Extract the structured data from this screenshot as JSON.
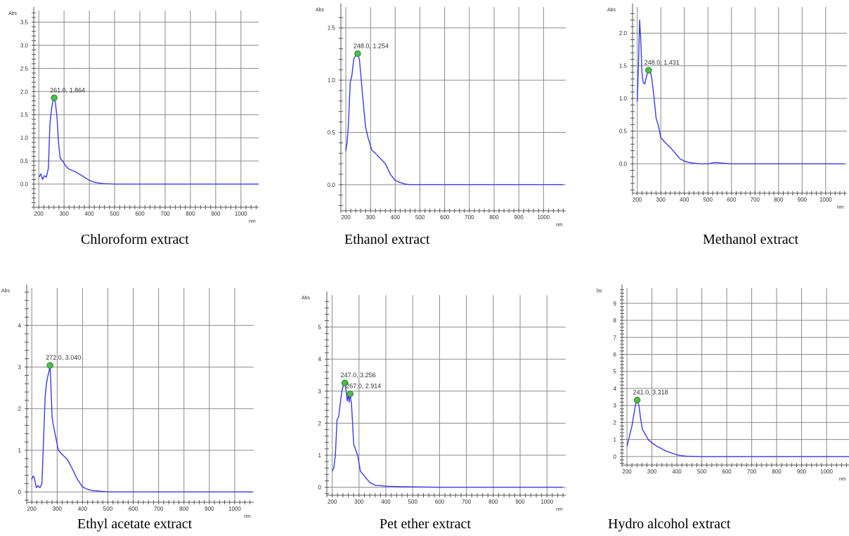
{
  "panels": [
    {
      "caption": "Chloroform extract",
      "chart_data": {
        "type": "line",
        "ylabel": "Abs",
        "xlabel": "nm",
        "xlim": [
          180,
          1070
        ],
        "ylim": [
          -0.5,
          3.75
        ],
        "x_ticks": [
          200,
          300,
          400,
          500,
          600,
          700,
          800,
          900,
          1000
        ],
        "y_ticks": [
          0.0,
          0.5,
          1.0,
          1.5,
          2.0,
          2.5,
          3.0,
          3.5
        ],
        "y_tick_labels": [
          "0.0",
          "0.5",
          "1.0",
          "1.5",
          "2.0",
          "2.5",
          "3.0",
          "3.5"
        ],
        "series": [
          {
            "x": [
              200,
              208,
              215,
              222,
              230,
              238,
              244,
              250,
              255,
              261,
              266,
              272,
              278,
              285,
              295,
              305,
              320,
              340,
              360,
              380,
              400,
              420,
              440,
              460,
              500,
              600,
              700,
              800,
              900,
              1000,
              1070
            ],
            "y": [
              0.15,
              0.22,
              0.1,
              0.18,
              0.15,
              0.35,
              1.3,
              1.6,
              1.78,
              1.864,
              1.75,
              1.45,
              0.9,
              0.55,
              0.5,
              0.4,
              0.32,
              0.28,
              0.22,
              0.15,
              0.08,
              0.04,
              0.02,
              0.01,
              0.0,
              0.0,
              0.0,
              0.0,
              0.0,
              0.0,
              0.0
            ]
          }
        ],
        "peaks": [
          {
            "x": 261,
            "y": 1.864,
            "label": "261.0, 1.864"
          }
        ]
      }
    },
    {
      "caption": "Ethanol extract",
      "chart_data": {
        "type": "line",
        "ylabel": "Abs",
        "xlabel": "nm",
        "xlim": [
          180,
          1090
        ],
        "ylim": [
          -0.25,
          1.7
        ],
        "x_ticks": [
          200,
          300,
          400,
          500,
          600,
          700,
          800,
          900,
          1000
        ],
        "y_ticks": [
          0.0,
          0.5,
          1.0,
          1.5
        ],
        "y_tick_labels": [
          "0.0",
          "0.5",
          "1.0",
          "1.5"
        ],
        "series": [
          {
            "x": [
              200,
              205,
              210,
              218,
              225,
              232,
              240,
              248,
              255,
              262,
              270,
              280,
              290,
              305,
              320,
              340,
              360,
              380,
              400,
              420,
              440,
              460,
              480,
              500,
              600,
              700,
              800,
              900,
              1000,
              1080
            ],
            "y": [
              0.32,
              0.4,
              0.55,
              0.98,
              1.05,
              1.2,
              1.24,
              1.254,
              1.2,
              1.02,
              0.8,
              0.55,
              0.45,
              0.33,
              0.3,
              0.25,
              0.2,
              0.1,
              0.04,
              0.02,
              0.005,
              0.0,
              0.0,
              0.0,
              0.0,
              0.0,
              0.0,
              0.0,
              0.0,
              0.0
            ]
          }
        ],
        "peaks": [
          {
            "x": 248,
            "y": 1.254,
            "label": "248.0, 1.254"
          }
        ]
      }
    },
    {
      "caption": "Methanol extract",
      "chart_data": {
        "type": "line",
        "ylabel": "Abs",
        "xlabel": "nm",
        "xlim": [
          180,
          1090
        ],
        "ylim": [
          -0.45,
          2.4
        ],
        "x_ticks": [
          200,
          300,
          400,
          500,
          600,
          700,
          800,
          900,
          1000
        ],
        "y_ticks": [
          0.0,
          0.5,
          1.0,
          1.5,
          2.0
        ],
        "y_tick_labels": [
          "0.0",
          "0.5",
          "1.0",
          "1.5",
          "2.0"
        ],
        "series": [
          {
            "x": [
              200,
              205,
              210,
              215,
              220,
              225,
              232,
              240,
              248,
              255,
              262,
              270,
              280,
              290,
              300,
              320,
              340,
              360,
              380,
              400,
              420,
              440,
              470,
              500,
              530,
              560,
              600,
              650,
              700,
              800,
              900,
              1000,
              1080
            ],
            "y": [
              0.95,
              1.5,
              2.2,
              1.9,
              1.4,
              1.25,
              1.22,
              1.35,
              1.431,
              1.42,
              1.3,
              1.05,
              0.7,
              0.58,
              0.4,
              0.32,
              0.25,
              0.17,
              0.08,
              0.04,
              0.02,
              0.01,
              0.0,
              0.0,
              0.02,
              0.01,
              0.0,
              0.0,
              0.0,
              0.0,
              0.0,
              0.0,
              0.0
            ]
          }
        ],
        "peaks": [
          {
            "x": 248,
            "y": 1.431,
            "label": "248.0, 1.431"
          }
        ]
      }
    },
    {
      "caption": "Ethyl acetate extract",
      "chart_data": {
        "type": "line",
        "ylabel": "Abs",
        "xlabel": "nm",
        "xlim": [
          180,
          1075
        ],
        "ylim": [
          -0.25,
          4.9
        ],
        "x_ticks": [
          200,
          300,
          400,
          500,
          600,
          700,
          800,
          900,
          1000
        ],
        "y_ticks": [
          0,
          1,
          2,
          3,
          4
        ],
        "y_tick_labels": [
          "0",
          "1",
          "2",
          "3",
          "4"
        ],
        "series": [
          {
            "x": [
              200,
              205,
              210,
              218,
              225,
              232,
              240,
              248,
              253,
              258,
              262,
              268,
              272,
              276,
              280,
              285,
              295,
              305,
              320,
              340,
              360,
              380,
              400,
              420,
              440,
              460,
              500,
              600,
              700,
              800,
              900,
              1000,
              1070
            ],
            "y": [
              0.3,
              0.38,
              0.35,
              0.1,
              0.15,
              0.1,
              0.2,
              1.5,
              2.3,
              2.6,
              2.75,
              2.9,
              3.04,
              2.5,
              1.8,
              1.6,
              1.3,
              1.0,
              0.9,
              0.78,
              0.55,
              0.3,
              0.12,
              0.06,
              0.03,
              0.02,
              0.0,
              0.0,
              0.0,
              0.0,
              0.0,
              0.0,
              0.0
            ]
          }
        ],
        "peaks": [
          {
            "x": 272,
            "y": 3.04,
            "label": "272.0, 3.040"
          }
        ]
      }
    },
    {
      "caption": "Pet ether extract",
      "chart_data": {
        "type": "line",
        "ylabel": "Abs",
        "xlabel": "nm",
        "xlim": [
          180,
          1070
        ],
        "ylim": [
          -0.25,
          6.0
        ],
        "x_ticks": [
          200,
          300,
          400,
          500,
          600,
          700,
          800,
          900,
          1000
        ],
        "y_ticks": [
          0,
          1,
          2,
          3,
          4,
          5
        ],
        "y_tick_labels": [
          "0",
          "1",
          "2",
          "3",
          "4",
          "5"
        ],
        "series": [
          {
            "x": [
              200,
              206,
              212,
              218,
              224,
              230,
              236,
              242,
              247,
              252,
              256,
              260,
              263,
              267,
              272,
              276,
              280,
              286,
              295,
              305,
              315,
              325,
              340,
              360,
              380,
              400,
              450,
              500,
              600,
              700,
              800,
              900,
              1000,
              1060
            ],
            "y": [
              0.5,
              0.6,
              1.0,
              2.1,
              2.2,
              2.6,
              3.0,
              3.2,
              3.256,
              3.0,
              2.7,
              2.9,
              2.65,
              2.914,
              2.6,
              2.0,
              1.35,
              1.2,
              1.0,
              0.5,
              0.4,
              0.3,
              0.15,
              0.06,
              0.05,
              0.03,
              0.02,
              0.01,
              0.0,
              0.0,
              0.0,
              0.0,
              0.0,
              0.0
            ]
          }
        ],
        "peaks": [
          {
            "x": 247,
            "y": 3.256,
            "label": "247.0, 3.256"
          },
          {
            "x": 267,
            "y": 2.914,
            "label": "267.0, 2.914"
          }
        ]
      }
    },
    {
      "caption": "Hydro alcohol extract",
      "chart_data": {
        "type": "line",
        "ylabel": "bs",
        "xlabel": "nm",
        "xlim": [
          180,
          1090
        ],
        "ylim": [
          -0.5,
          9.9
        ],
        "x_ticks": [
          200,
          300,
          400,
          500,
          600,
          700,
          800,
          900,
          1000
        ],
        "y_ticks": [
          0,
          1,
          2,
          3,
          4,
          5,
          6,
          7,
          8,
          9
        ],
        "y_tick_labels": [
          "0",
          "1",
          "2",
          "3",
          "4",
          "5",
          "6",
          "7",
          "8",
          "9"
        ],
        "series": [
          {
            "x": [
              200,
              210,
              220,
              228,
              235,
              241,
              248,
              255,
              262,
              270,
              285,
              300,
              320,
              340,
              360,
              380,
              400,
              420,
              440,
              460,
              500,
              600,
              700,
              800,
              900,
              1000,
              1090
            ],
            "y": [
              0.6,
              1.2,
              1.8,
              2.5,
              3.1,
              3.318,
              3.0,
              2.2,
              1.6,
              1.4,
              1.0,
              0.8,
              0.6,
              0.45,
              0.3,
              0.2,
              0.1,
              0.05,
              0.02,
              0.01,
              0.0,
              0.0,
              0.0,
              0.0,
              0.0,
              0.0,
              0.0
            ]
          }
        ],
        "peaks": [
          {
            "x": 241,
            "y": 3.318,
            "label": "241.0, 3.318"
          }
        ]
      }
    }
  ],
  "colors": {
    "line": "#3b3bf0",
    "marker_fill": "#48c048",
    "marker_stroke": "#2f7f2f",
    "grid": "#8a8a8a"
  }
}
